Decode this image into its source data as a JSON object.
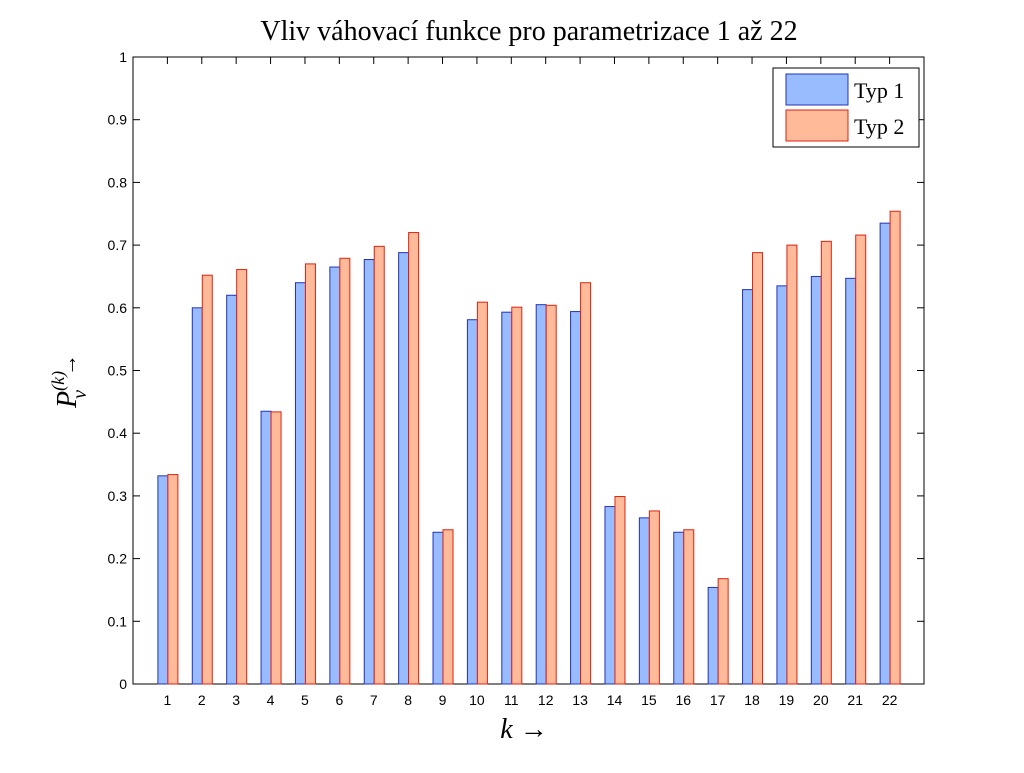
{
  "chart_data": {
    "type": "bar",
    "title": "Vliv váhovací funkce pro parametrizace 1 až 22",
    "xlabel": "k →",
    "ylabel": {
      "main": "P",
      "superscript": "(k)",
      "subscript": "v",
      "arrow": "→"
    },
    "categories": [
      "1",
      "2",
      "3",
      "4",
      "5",
      "6",
      "7",
      "8",
      "9",
      "10",
      "11",
      "12",
      "13",
      "14",
      "15",
      "16",
      "17",
      "18",
      "19",
      "20",
      "21",
      "22"
    ],
    "series": [
      {
        "name": "Typ 1",
        "color": "#99bbff",
        "edge": "#2233bb",
        "values": [
          0.332,
          0.6,
          0.62,
          0.435,
          0.64,
          0.665,
          0.677,
          0.688,
          0.242,
          0.581,
          0.593,
          0.605,
          0.594,
          0.283,
          0.265,
          0.242,
          0.154,
          0.629,
          0.635,
          0.65,
          0.647,
          0.735
        ]
      },
      {
        "name": "Typ 2",
        "color": "#ffbb99",
        "edge": "#dd2211",
        "values": [
          0.334,
          0.652,
          0.661,
          0.434,
          0.67,
          0.679,
          0.698,
          0.72,
          0.246,
          0.609,
          0.601,
          0.604,
          0.64,
          0.299,
          0.276,
          0.246,
          0.168,
          0.688,
          0.7,
          0.706,
          0.716,
          0.754
        ]
      }
    ],
    "ylim": [
      0,
      1
    ],
    "yticks": [
      "0",
      "0.1",
      "0.2",
      "0.3",
      "0.4",
      "0.5",
      "0.6",
      "0.7",
      "0.8",
      "0.9",
      "1"
    ],
    "grid": false,
    "legend_position": "top-right"
  }
}
